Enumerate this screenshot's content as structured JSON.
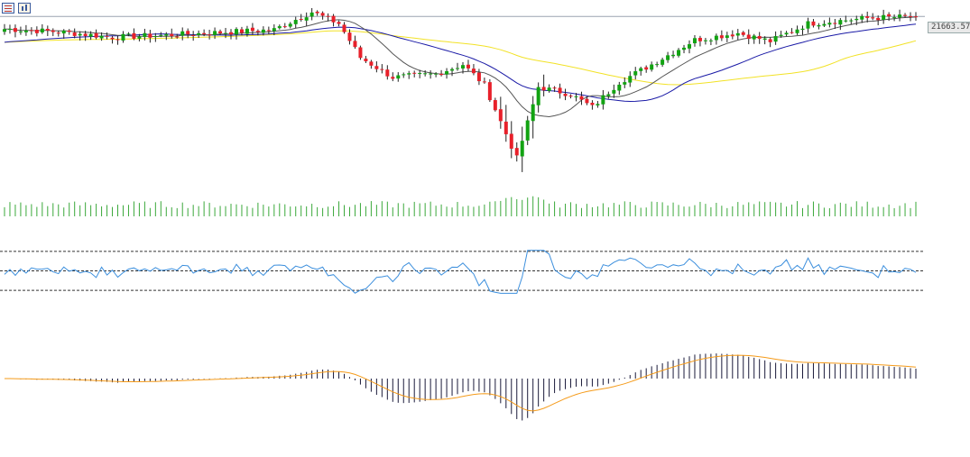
{
  "colors": {
    "up": "#12a312",
    "down": "#e8202a",
    "wick": "#222222",
    "ma_fast": "#555555",
    "ma_mid": "#1a1aa6",
    "ma_slow": "#f2e226",
    "volume": "#3aa83a",
    "rsi": "#3c8fdd",
    "rsi_levels": "#333333",
    "macd_hist": "#1a1a3a",
    "macd_signal": "#f59b1a",
    "price_line": "#9aa4b0"
  },
  "toolbar": {
    "icon1": "list-icon",
    "icon2": "chart-properties-icon"
  },
  "chart_data": {
    "type": "candlestick",
    "current_price_label": "21663.57",
    "current_price": 21663.57,
    "price_ylim": [
      19100,
      21800
    ],
    "candles_count": 170,
    "anchors": [
      [
        0,
        21480
      ],
      [
        10,
        21440
      ],
      [
        20,
        21360
      ],
      [
        30,
        21390
      ],
      [
        40,
        21430
      ],
      [
        50,
        21470
      ],
      [
        57,
        21730
      ],
      [
        62,
        21560
      ],
      [
        66,
        21060
      ],
      [
        72,
        20770
      ],
      [
        80,
        20820
      ],
      [
        85,
        20960
      ],
      [
        89,
        20660
      ],
      [
        95,
        19580
      ],
      [
        99,
        20630
      ],
      [
        105,
        20520
      ],
      [
        109,
        20330
      ],
      [
        114,
        20700
      ],
      [
        120,
        20960
      ],
      [
        128,
        21320
      ],
      [
        136,
        21420
      ],
      [
        142,
        21300
      ],
      [
        149,
        21560
      ],
      [
        160,
        21640
      ],
      [
        169,
        21663.57
      ]
    ],
    "rsi_levels": [
      70,
      50,
      30
    ],
    "rsi_ylim": [
      20,
      80
    ],
    "macd_ylim": [
      -62,
      30
    ]
  }
}
